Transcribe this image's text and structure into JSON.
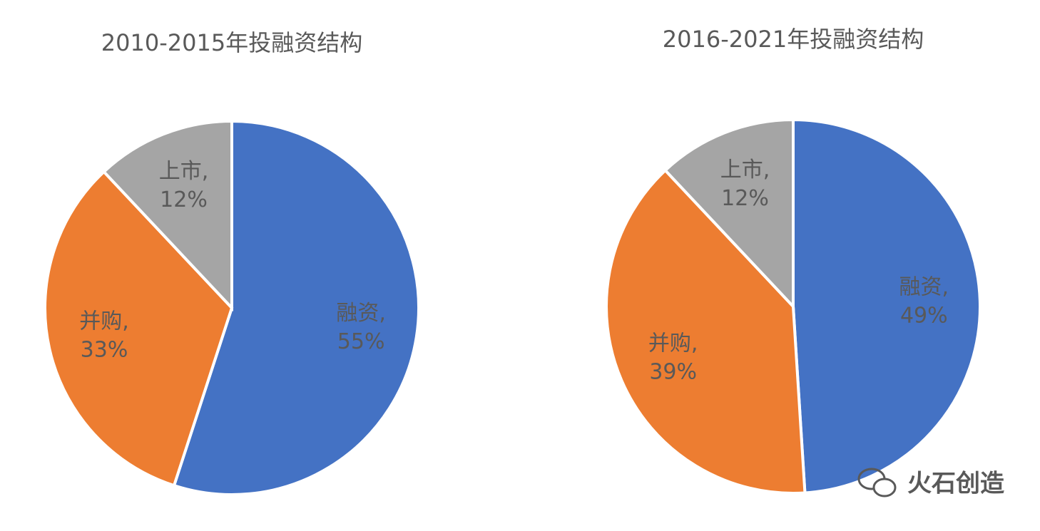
{
  "chart_data": [
    {
      "type": "pie",
      "title": "2010-2015年投融资结构",
      "categories": [
        "融资,",
        "并购,",
        "上市,"
      ],
      "values": [
        55,
        33,
        12
      ],
      "value_labels": [
        "55%",
        "33%",
        "12%"
      ],
      "colors": [
        "#4472c4",
        "#ed7d31",
        "#a5a5a5"
      ]
    },
    {
      "type": "pie",
      "title": "2016-2021年投融资结构",
      "categories": [
        "融资,",
        "并购,",
        "上市,"
      ],
      "values": [
        49,
        39,
        12
      ],
      "value_labels": [
        "49%",
        "39%",
        "12%"
      ],
      "colors": [
        "#4472c4",
        "#ed7d31",
        "#a5a5a5"
      ]
    }
  ],
  "watermark": "火石创造"
}
